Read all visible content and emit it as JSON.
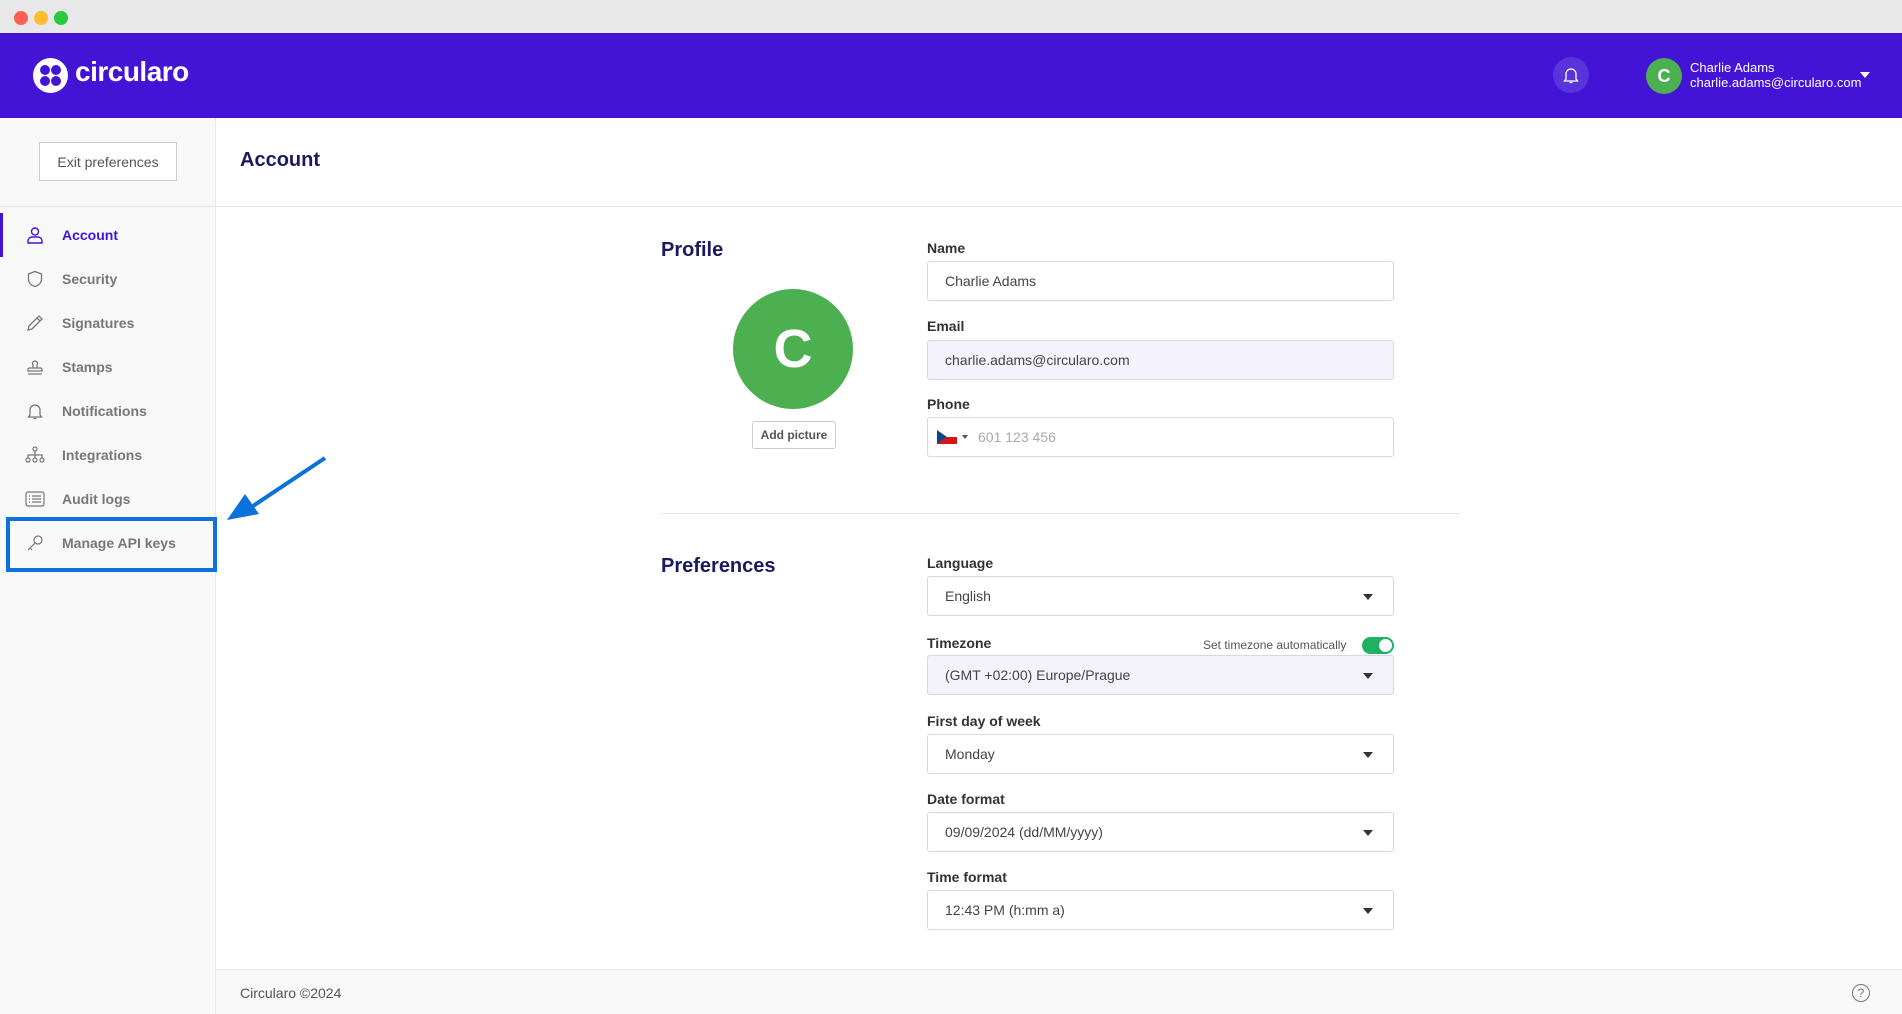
{
  "window": {
    "controls": [
      "close",
      "minimize",
      "maximize"
    ]
  },
  "header": {
    "brand": "circularo",
    "user": {
      "initial": "C",
      "name": "Charlie Adams",
      "email": "charlie.adams@circularo.com"
    },
    "colors": {
      "brand": "#4314d6",
      "avatar": "#4caf50"
    }
  },
  "sidebar": {
    "exit_label": "Exit preferences",
    "items": [
      {
        "label": "Account",
        "icon": "user-icon",
        "active": true
      },
      {
        "label": "Security",
        "icon": "shield-icon"
      },
      {
        "label": "Signatures",
        "icon": "pen-icon"
      },
      {
        "label": "Stamps",
        "icon": "stamp-icon"
      },
      {
        "label": "Notifications",
        "icon": "bell-icon"
      },
      {
        "label": "Integrations",
        "icon": "sitemap-icon"
      },
      {
        "label": "Audit logs",
        "icon": "list-icon"
      },
      {
        "label": "Manage API keys",
        "icon": "key-icon",
        "highlighted": true
      }
    ]
  },
  "main": {
    "title": "Account",
    "profile": {
      "heading": "Profile",
      "avatar_initial": "C",
      "add_picture": "Add picture",
      "name_label": "Name",
      "name_value": "Charlie Adams",
      "email_label": "Email",
      "email_value": "charlie.adams@circularo.com",
      "phone_label": "Phone",
      "phone_placeholder": "601 123 456",
      "phone_country": "CZ"
    },
    "preferences": {
      "heading": "Preferences",
      "language_label": "Language",
      "language_value": "English",
      "timezone_label": "Timezone",
      "timezone_auto_label": "Set timezone automatically",
      "timezone_auto": true,
      "timezone_value": "(GMT +02:00) Europe/Prague",
      "first_day_label": "First day of week",
      "first_day_value": "Monday",
      "date_format_label": "Date format",
      "date_format_value": "09/09/2024 (dd/MM/yyyy)",
      "time_format_label": "Time format",
      "time_format_value": "12:43 PM (h:mm a)"
    }
  },
  "footer": {
    "text": "Circularo ©2024",
    "help": "?"
  }
}
